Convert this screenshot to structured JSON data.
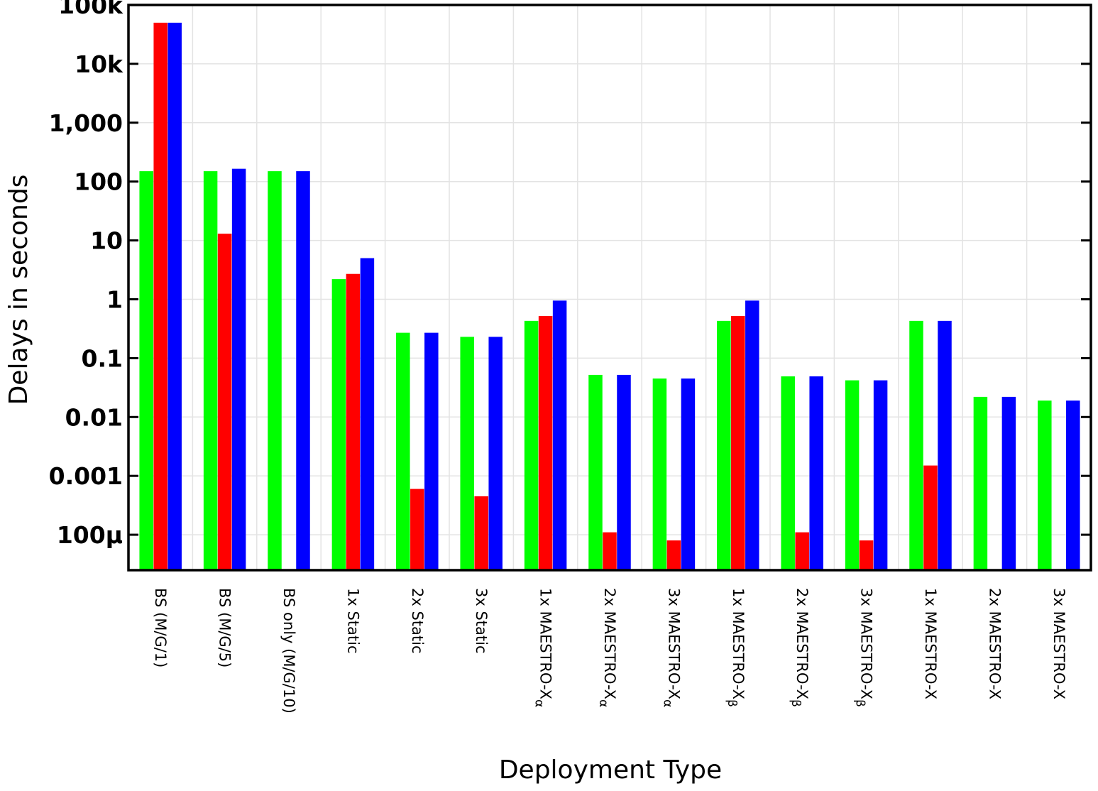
{
  "chart_data": {
    "type": "bar",
    "title": "",
    "xlabel": "Deployment Type",
    "ylabel": "Delays in seconds",
    "yscale": "log",
    "ylim": [
      2.5e-05,
      100000
    ],
    "grid": true,
    "legend": "none",
    "y_ticks": [
      {
        "value": 0.0001,
        "label": "100µ"
      },
      {
        "value": 0.001,
        "label": "0.001"
      },
      {
        "value": 0.01,
        "label": "0.01"
      },
      {
        "value": 0.1,
        "label": "0.1"
      },
      {
        "value": 1,
        "label": "1"
      },
      {
        "value": 10,
        "label": "10"
      },
      {
        "value": 100,
        "label": "100"
      },
      {
        "value": 1000,
        "label": "1,000"
      },
      {
        "value": 10000,
        "label": "10k"
      },
      {
        "value": 100000,
        "label": "100k"
      }
    ],
    "categories": [
      {
        "text": "BS (M/G/1)",
        "sub": ""
      },
      {
        "text": "BS (M/G/5)",
        "sub": ""
      },
      {
        "text": "BS only (M/G/10)",
        "sub": ""
      },
      {
        "text": "1x Static",
        "sub": ""
      },
      {
        "text": "2x Static",
        "sub": ""
      },
      {
        "text": "3x Static",
        "sub": ""
      },
      {
        "text": "1x MAESTRO-X",
        "sub": "α"
      },
      {
        "text": "2x MAESTRO-X",
        "sub": "α"
      },
      {
        "text": "3x MAESTRO-X",
        "sub": "α"
      },
      {
        "text": "1x MAESTRO-X",
        "sub": "β"
      },
      {
        "text": "2x MAESTRO-X",
        "sub": "β"
      },
      {
        "text": "3x MAESTRO-X",
        "sub": "β"
      },
      {
        "text": "1x MAESTRO-X",
        "sub": ""
      },
      {
        "text": "2x MAESTRO-X",
        "sub": ""
      },
      {
        "text": "3x MAESTRO-X",
        "sub": ""
      }
    ],
    "series": [
      {
        "color": "#00ff00",
        "values": [
          150,
          150,
          150,
          2.2,
          0.27,
          0.23,
          0.43,
          0.052,
          0.045,
          0.43,
          0.049,
          0.042,
          0.43,
          0.022,
          0.019
        ]
      },
      {
        "color": "#ff0000",
        "values": [
          50000,
          13,
          null,
          2.7,
          0.0006,
          0.00045,
          0.52,
          0.00011,
          8e-05,
          0.52,
          0.00011,
          8e-05,
          0.0015,
          null,
          null
        ]
      },
      {
        "color": "#0000ff",
        "values": [
          50000,
          165,
          150,
          5,
          0.27,
          0.23,
          0.95,
          0.052,
          0.045,
          0.95,
          0.049,
          0.042,
          0.43,
          0.022,
          0.019
        ]
      }
    ]
  }
}
